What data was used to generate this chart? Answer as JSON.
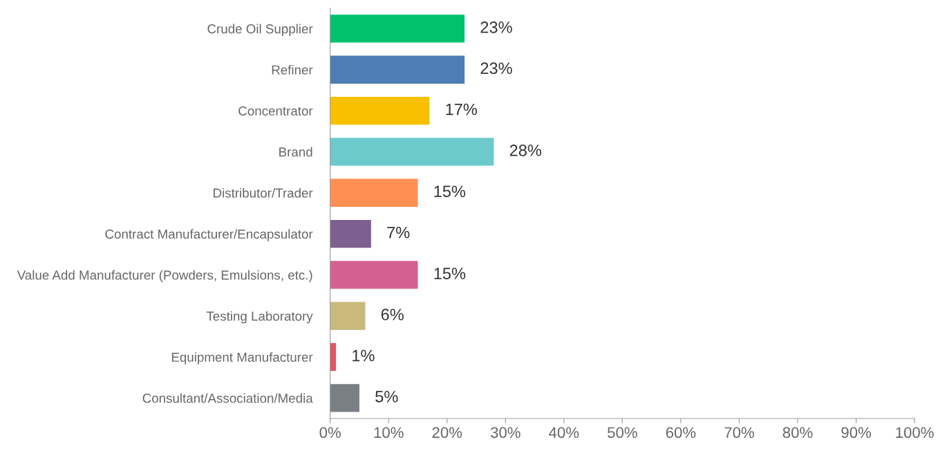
{
  "chart_data": {
    "type": "bar",
    "orientation": "horizontal",
    "categories": [
      "Crude Oil Supplier",
      "Refiner",
      "Concentrator",
      "Brand",
      "Distributor/Trader",
      "Contract Manufacturer/Encapsulator",
      "Value Add Manufacturer (Powders, Emulsions, etc.)",
      "Testing Laboratory",
      "Equipment Manufacturer",
      "Consultant/Association/Media"
    ],
    "values": [
      23,
      23,
      17,
      28,
      15,
      7,
      15,
      6,
      1,
      5
    ],
    "value_labels": [
      "23%",
      "23%",
      "17%",
      "28%",
      "15%",
      "7%",
      "15%",
      "6%",
      "1%",
      "5%"
    ],
    "colors": [
      "#00c16e",
      "#4e7cb5",
      "#f9c000",
      "#6ccacd",
      "#ff8f52",
      "#7f5f8f",
      "#d36090",
      "#c9b97b",
      "#e15765",
      "#7a7f86"
    ],
    "xlim": [
      0,
      100
    ],
    "xticks": [
      {
        "value": 0,
        "label": "0%"
      },
      {
        "value": 10,
        "label": "10%"
      },
      {
        "value": 20,
        "label": "20%"
      },
      {
        "value": 30,
        "label": "30%"
      },
      {
        "value": 40,
        "label": "40%"
      },
      {
        "value": 50,
        "label": "50%"
      },
      {
        "value": 60,
        "label": "60%"
      },
      {
        "value": 70,
        "label": "70%"
      },
      {
        "value": 80,
        "label": "80%"
      },
      {
        "value": 90,
        "label": "90%"
      },
      {
        "value": 100,
        "label": "100%"
      }
    ],
    "grid": false,
    "legend": false
  }
}
